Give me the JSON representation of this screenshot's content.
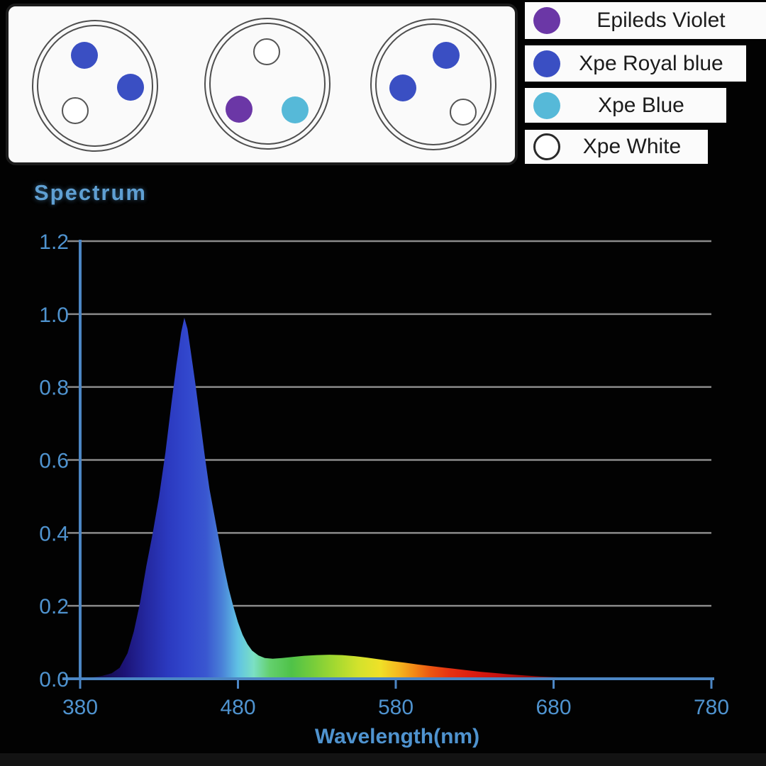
{
  "colors": {
    "accent_text": "#5f9fd2",
    "axis": "#4c86c4",
    "axis_text": "#4f93cf",
    "grid": "#8a8a8a",
    "violet": "#6b37a6",
    "royal_blue": "#3a4fc3",
    "blue": "#56b9d8",
    "white_led": "#ffffff",
    "legend_bg": "#fbfbfb",
    "legend_text": "#1c1c1c"
  },
  "led_panel": {
    "modules": [
      {
        "leds": [
          "royal_blue",
          "royal_blue",
          "white_led"
        ]
      },
      {
        "leds": [
          "white_led",
          "violet",
          "blue"
        ]
      },
      {
        "leds": [
          "royal_blue",
          "royal_blue",
          "white_led"
        ]
      }
    ]
  },
  "legend": {
    "items": [
      {
        "label": "Epileds Violet",
        "color": "#6b37a6",
        "filled": true
      },
      {
        "label": "Xpe Royal blue",
        "color": "#3a4fc3",
        "filled": true
      },
      {
        "label": "Xpe Blue",
        "color": "#56b9d8",
        "filled": true
      },
      {
        "label": "Xpe White",
        "color": "#ffffff",
        "filled": false
      }
    ]
  },
  "chart_data": {
    "type": "area",
    "title": "Spectrum",
    "xlabel": "Wavelength(nm)",
    "ylabel": "",
    "xlim": [
      380,
      780
    ],
    "ylim": [
      0,
      1.2
    ],
    "x_ticks": [
      380,
      480,
      580,
      680,
      780
    ],
    "y_ticks": [
      0.0,
      0.2,
      0.4,
      0.6,
      0.8,
      1.0,
      1.2
    ],
    "grid": true,
    "legend_position": "top-right",
    "peak": {
      "wavelength_nm": 446,
      "intensity": 0.99
    },
    "points": [
      [
        380,
        0.002
      ],
      [
        388,
        0.004
      ],
      [
        394,
        0.008
      ],
      [
        400,
        0.015
      ],
      [
        405,
        0.03
      ],
      [
        410,
        0.07
      ],
      [
        414,
        0.13
      ],
      [
        418,
        0.21
      ],
      [
        422,
        0.31
      ],
      [
        426,
        0.4
      ],
      [
        430,
        0.5
      ],
      [
        434,
        0.62
      ],
      [
        438,
        0.76
      ],
      [
        441,
        0.86
      ],
      [
        444,
        0.95
      ],
      [
        446,
        0.99
      ],
      [
        448,
        0.96
      ],
      [
        450,
        0.9
      ],
      [
        453,
        0.81
      ],
      [
        456,
        0.71
      ],
      [
        459,
        0.61
      ],
      [
        462,
        0.52
      ],
      [
        465,
        0.45
      ],
      [
        468,
        0.38
      ],
      [
        471,
        0.31
      ],
      [
        474,
        0.25
      ],
      [
        477,
        0.2
      ],
      [
        480,
        0.155
      ],
      [
        483,
        0.12
      ],
      [
        486,
        0.095
      ],
      [
        489,
        0.077
      ],
      [
        493,
        0.064
      ],
      [
        497,
        0.057
      ],
      [
        502,
        0.055
      ],
      [
        508,
        0.057
      ],
      [
        515,
        0.06
      ],
      [
        522,
        0.063
      ],
      [
        530,
        0.065
      ],
      [
        538,
        0.066
      ],
      [
        546,
        0.065
      ],
      [
        554,
        0.062
      ],
      [
        562,
        0.058
      ],
      [
        570,
        0.053
      ],
      [
        578,
        0.048
      ],
      [
        586,
        0.044
      ],
      [
        594,
        0.039
      ],
      [
        602,
        0.035
      ],
      [
        610,
        0.031
      ],
      [
        618,
        0.027
      ],
      [
        626,
        0.023
      ],
      [
        634,
        0.019
      ],
      [
        642,
        0.016
      ],
      [
        652,
        0.012
      ],
      [
        662,
        0.009
      ],
      [
        672,
        0.006
      ],
      [
        682,
        0.004
      ],
      [
        692,
        0.002
      ],
      [
        702,
        0.001
      ],
      [
        712,
        0
      ]
    ],
    "spectral_gradient": [
      [
        380,
        "#0b0524"
      ],
      [
        394,
        "#140b48"
      ],
      [
        408,
        "#1c1376"
      ],
      [
        422,
        "#2428a0"
      ],
      [
        436,
        "#2b3ac0"
      ],
      [
        448,
        "#3247cd"
      ],
      [
        460,
        "#3a57d0"
      ],
      [
        470,
        "#4a82d8"
      ],
      [
        480,
        "#60c2e4"
      ],
      [
        490,
        "#7be0c4"
      ],
      [
        500,
        "#64d06e"
      ],
      [
        514,
        "#4fc248"
      ],
      [
        528,
        "#78cd3a"
      ],
      [
        542,
        "#a5d930"
      ],
      [
        556,
        "#d2e22c"
      ],
      [
        570,
        "#efe128"
      ],
      [
        582,
        "#f5b71f"
      ],
      [
        592,
        "#f28716"
      ],
      [
        602,
        "#ec5612"
      ],
      [
        614,
        "#e53212"
      ],
      [
        628,
        "#dd1d10"
      ],
      [
        645,
        "#c51210"
      ],
      [
        662,
        "#9c0c0c"
      ],
      [
        680,
        "#6b0808"
      ],
      [
        698,
        "#3f0404"
      ],
      [
        714,
        "#1c0202"
      ]
    ]
  }
}
